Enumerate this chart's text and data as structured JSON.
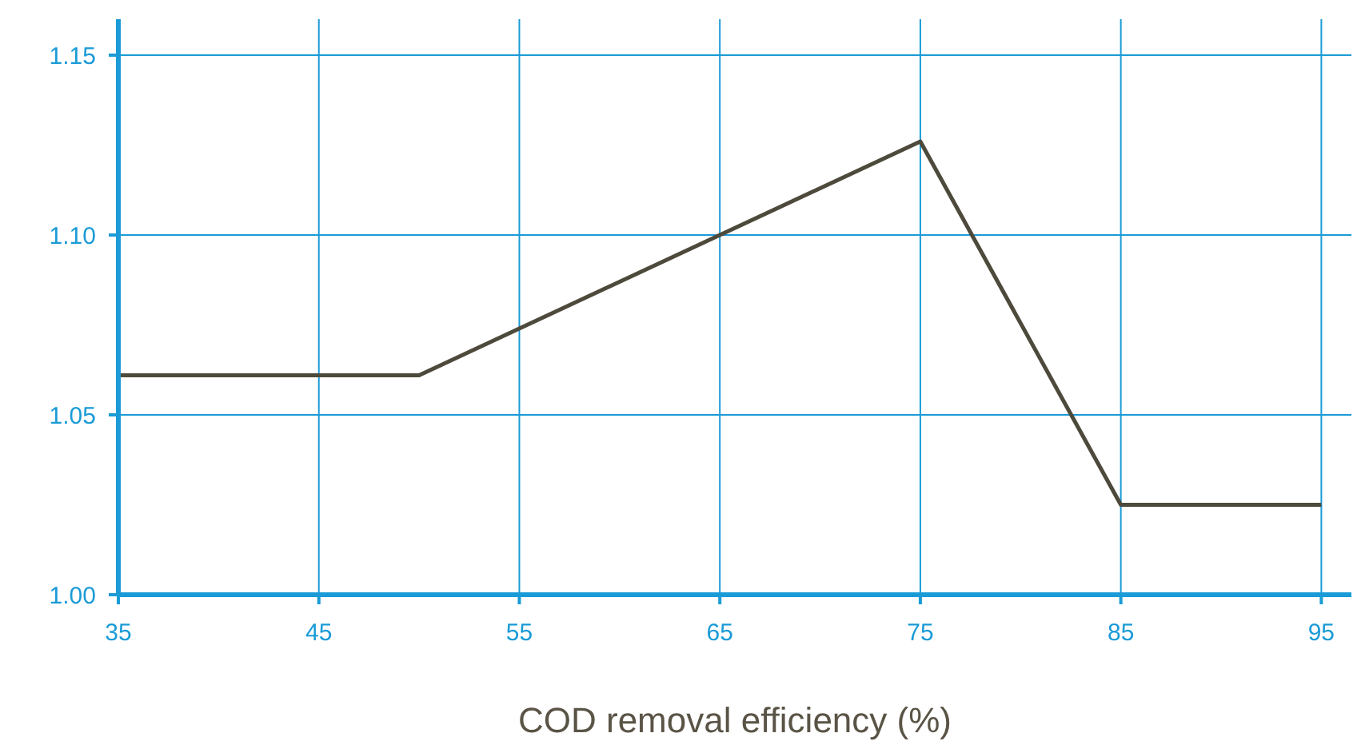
{
  "chart_data": {
    "type": "line",
    "xlabel": "COD removal efficiency (%)",
    "x": [
      35,
      50,
      75,
      85,
      95
    ],
    "series": [
      {
        "color": "#4d4a3c",
        "values": [
          1.061,
          1.061,
          1.126,
          1.025,
          1.025
        ]
      }
    ],
    "xlim": [
      35,
      96.5
    ],
    "xticks": [
      35,
      45,
      55,
      65,
      75,
      85,
      95
    ],
    "ylim": [
      1.0,
      1.16
    ],
    "yticks": [
      {
        "value": 1.0,
        "label": "1.00"
      },
      {
        "value": 1.05,
        "label": "1.05"
      },
      {
        "value": 1.1,
        "label": "1.10"
      },
      {
        "value": 1.15,
        "label": "1.15"
      }
    ],
    "grid": true,
    "marker": "none",
    "line_style": "solid",
    "legend": false
  }
}
